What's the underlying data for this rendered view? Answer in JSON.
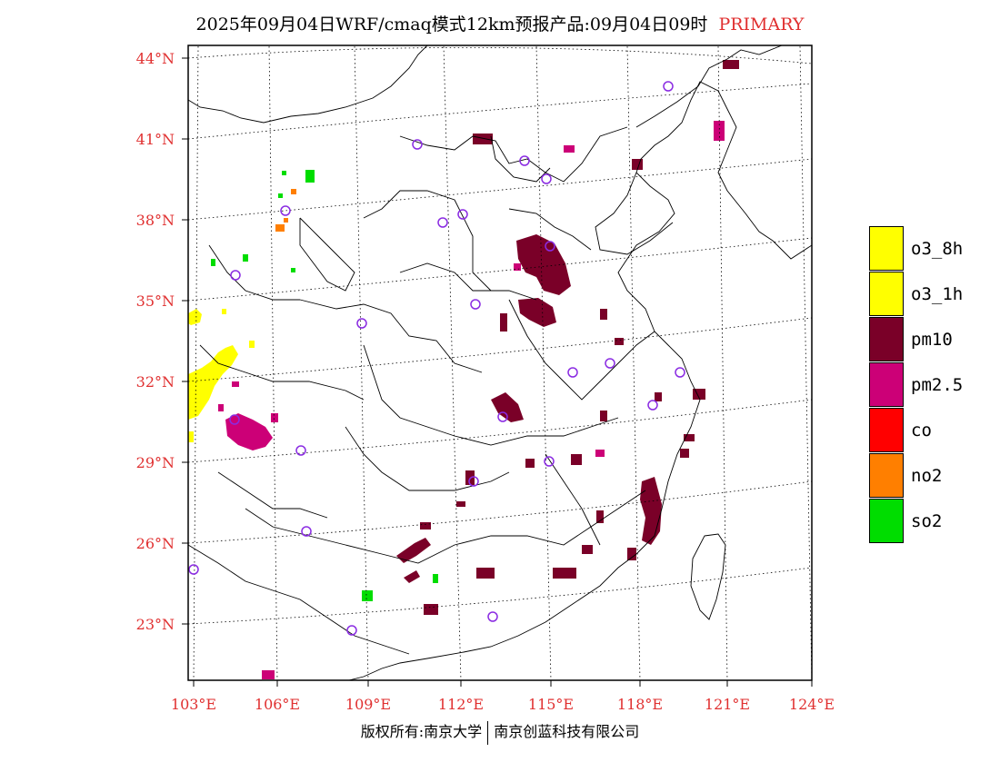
{
  "header": {
    "title": "2025年09月04日WRF/cmaq模式12km预报产品:09月04日09时",
    "primary_label": "PRIMARY",
    "primary_color": "#e03030"
  },
  "axes": {
    "lat_labels": [
      "44°N",
      "41°N",
      "38°N",
      "35°N",
      "32°N",
      "29°N",
      "26°N",
      "23°N"
    ],
    "lon_labels": [
      "103°E",
      "106°E",
      "109°E",
      "112°E",
      "115°E",
      "118°E",
      "121°E",
      "124°E"
    ],
    "tick_color": "#e03030"
  },
  "legend": {
    "items": [
      {
        "label": "o3_8h",
        "color": "#ffff00"
      },
      {
        "label": "o3_1h",
        "color": "#ffff00"
      },
      {
        "label": "pm10",
        "color": "#7a0028"
      },
      {
        "label": "pm2.5",
        "color": "#cc0077"
      },
      {
        "label": "co",
        "color": "#ff0000"
      },
      {
        "label": "no2",
        "color": "#ff7f00"
      },
      {
        "label": "so2",
        "color": "#00dd00"
      }
    ]
  },
  "station_marker_color": "#8a2be2",
  "footer": {
    "left": "版权所有:南京大学",
    "right": "南京创蓝科技有限公司"
  }
}
